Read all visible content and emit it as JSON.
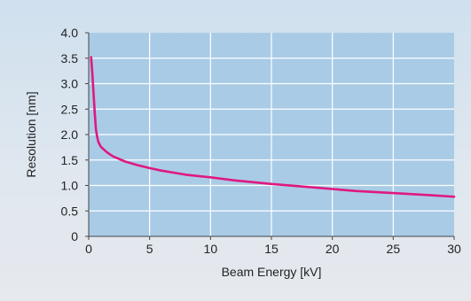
{
  "chart_data": {
    "type": "line",
    "xlabel": "Beam Energy [kV]",
    "ylabel": "Resolution [nm]",
    "xlim": [
      0,
      30
    ],
    "ylim": [
      0,
      4.0
    ],
    "x_ticks": [
      "0",
      "5",
      "10",
      "15",
      "20",
      "25",
      "30"
    ],
    "y_ticks": [
      "0",
      "0.5",
      "1.0",
      "1.5",
      "2.0",
      "2.5",
      "3.0",
      "3.5",
      "4.0"
    ],
    "grid": true,
    "series": [
      {
        "color": "#e0187f",
        "x": [
          0.2,
          0.3,
          0.4,
          0.5,
          0.6,
          0.7,
          0.8,
          1.0,
          1.5,
          2,
          3,
          4,
          5,
          6,
          8,
          10,
          12,
          15,
          18,
          20,
          22,
          25,
          28,
          30
        ],
        "y": [
          3.52,
          3.2,
          2.8,
          2.4,
          2.1,
          1.95,
          1.85,
          1.76,
          1.65,
          1.57,
          1.47,
          1.4,
          1.34,
          1.29,
          1.21,
          1.16,
          1.1,
          1.03,
          0.97,
          0.93,
          0.89,
          0.85,
          0.81,
          0.78
        ]
      }
    ]
  }
}
